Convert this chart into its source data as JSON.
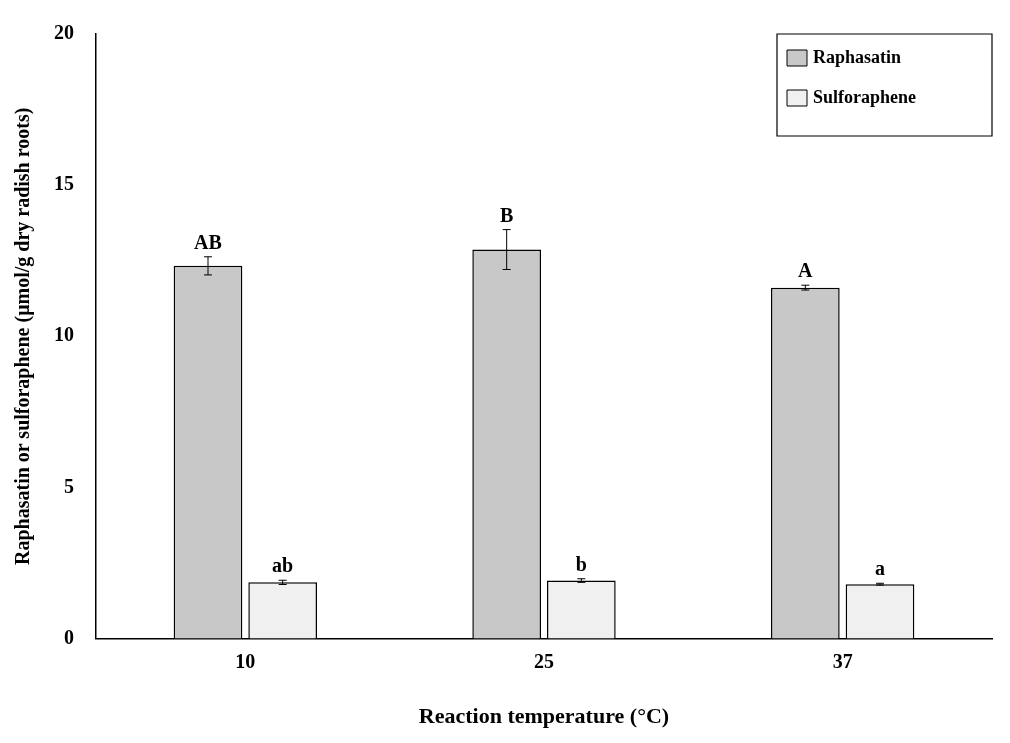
{
  "chart_data": {
    "type": "bar",
    "xlabel": "Reaction temperature (°C)",
    "ylabel": "Raphasatin or sulforaphene (μmol/g dry radish roots)",
    "categories": [
      "10",
      "25",
      "37"
    ],
    "series": [
      {
        "name": "Raphasatin",
        "color": "#c8c8c8",
        "values": [
          12.33,
          12.87,
          11.61
        ],
        "errors": [
          0.3,
          0.66,
          0.08
        ]
      },
      {
        "name": "Sulforaphene",
        "color": "#f0f0f0",
        "values": [
          1.86,
          1.92,
          1.8
        ],
        "errors": [
          0.07,
          0.06,
          0.03
        ]
      }
    ],
    "ylim": [
      0,
      20
    ],
    "yticks": [
      0,
      5,
      10,
      15,
      20
    ],
    "grid": false,
    "legend": "top right",
    "annotations": [
      {
        "text": "AB",
        "x": "10",
        "y": 12.33
      },
      {
        "text": "B",
        "x": "25",
        "y": 12.87
      },
      {
        "text": "A",
        "x": "37",
        "y": 11.61
      },
      {
        "text": "ab",
        "x": "10",
        "y": 1.93
      },
      {
        "text": "b",
        "x": "25",
        "y": 1.98
      },
      {
        "text": "a",
        "x": "37",
        "y": 1.83
      }
    ]
  }
}
